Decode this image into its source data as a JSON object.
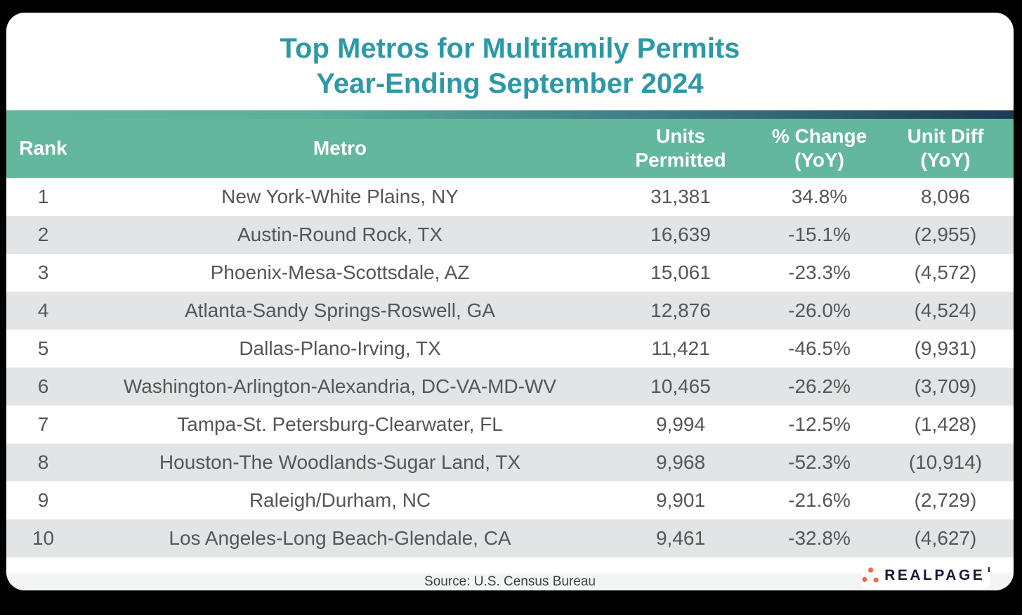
{
  "title": {
    "line1": "Top Metros for Multifamily Permits",
    "line2": "Year-Ending September 2024"
  },
  "table": {
    "columns": [
      {
        "line1": "Rank",
        "line2": ""
      },
      {
        "line1": "Metro",
        "line2": ""
      },
      {
        "line1": "Units",
        "line2": "Permitted"
      },
      {
        "line1": "% Change",
        "line2": "(YoY)"
      },
      {
        "line1": "Unit Diff",
        "line2": "(YoY)"
      }
    ],
    "rows": [
      {
        "rank": "1",
        "metro": "New York-White Plains, NY",
        "units": "31,381",
        "pct_change": "34.8%",
        "unit_diff": "8,096"
      },
      {
        "rank": "2",
        "metro": "Austin-Round Rock, TX",
        "units": "16,639",
        "pct_change": "-15.1%",
        "unit_diff": "(2,955)"
      },
      {
        "rank": "3",
        "metro": "Phoenix-Mesa-Scottsdale, AZ",
        "units": "15,061",
        "pct_change": "-23.3%",
        "unit_diff": "(4,572)"
      },
      {
        "rank": "4",
        "metro": "Atlanta-Sandy Springs-Roswell, GA",
        "units": "12,876",
        "pct_change": "-26.0%",
        "unit_diff": "(4,524)"
      },
      {
        "rank": "5",
        "metro": "Dallas-Plano-Irving, TX",
        "units": "11,421",
        "pct_change": "-46.5%",
        "unit_diff": "(9,931)"
      },
      {
        "rank": "6",
        "metro": "Washington-Arlington-Alexandria, DC-VA-MD-WV",
        "units": "10,465",
        "pct_change": "-26.2%",
        "unit_diff": "(3,709)"
      },
      {
        "rank": "7",
        "metro": "Tampa-St. Petersburg-Clearwater, FL",
        "units": "9,994",
        "pct_change": "-12.5%",
        "unit_diff": "(1,428)"
      },
      {
        "rank": "8",
        "metro": "Houston-The Woodlands-Sugar Land, TX",
        "units": "9,968",
        "pct_change": "-52.3%",
        "unit_diff": "(10,914)"
      },
      {
        "rank": "9",
        "metro": "Raleigh/Durham, NC",
        "units": "9,901",
        "pct_change": "-21.6%",
        "unit_diff": "(2,729)"
      },
      {
        "rank": "10",
        "metro": "Los Angeles-Long Beach-Glendale, CA",
        "units": "9,461",
        "pct_change": "-32.8%",
        "unit_diff": "(4,627)"
      }
    ]
  },
  "footer": {
    "source": "Source: U.S. Census Bureau"
  },
  "logo": {
    "text": "REALPAGE",
    "dots_icon": "realpage-three-dots",
    "dots_color": "#E8714C",
    "text_color": "#161C33"
  },
  "colors": {
    "title_teal": "#2D99A7",
    "header_green": "#63B79D",
    "strip_gradient_start": "#63B79D",
    "strip_gradient_end": "#1E3A54",
    "row_alt_gray": "#E3E4E6",
    "row_text_gray": "#55565A",
    "footer_band_gray": "#F3F4F4",
    "frame_black": "#000000"
  },
  "chart_data": {
    "type": "table",
    "title": "Top Metros for Multifamily Permits Year-Ending September 2024",
    "columns": [
      "Rank",
      "Metro",
      "Units Permitted",
      "% Change (YoY)",
      "Unit Diff (YoY)"
    ],
    "rows": [
      [
        1,
        "New York-White Plains, NY",
        31381,
        34.8,
        8096
      ],
      [
        2,
        "Austin-Round Rock, TX",
        16639,
        -15.1,
        -2955
      ],
      [
        3,
        "Phoenix-Mesa-Scottsdale, AZ",
        15061,
        -23.3,
        -4572
      ],
      [
        4,
        "Atlanta-Sandy Springs-Roswell, GA",
        12876,
        -26.0,
        -4524
      ],
      [
        5,
        "Dallas-Plano-Irving, TX",
        11421,
        -46.5,
        -9931
      ],
      [
        6,
        "Washington-Arlington-Alexandria, DC-VA-MD-WV",
        10465,
        -26.2,
        -3709
      ],
      [
        7,
        "Tampa-St. Petersburg-Clearwater, FL",
        9994,
        -12.5,
        -1428
      ],
      [
        8,
        "Houston-The Woodlands-Sugar Land, TX",
        9968,
        -52.3,
        -10914
      ],
      [
        9,
        "Raleigh/Durham, NC",
        9901,
        -21.6,
        -2729
      ],
      [
        10,
        "Los Angeles-Long Beach-Glendale, CA",
        9461,
        -32.8,
        -4627
      ]
    ],
    "notes": "Striped rows; negative unit differences displayed in parentheses",
    "source": "Source: U.S. Census Bureau"
  }
}
